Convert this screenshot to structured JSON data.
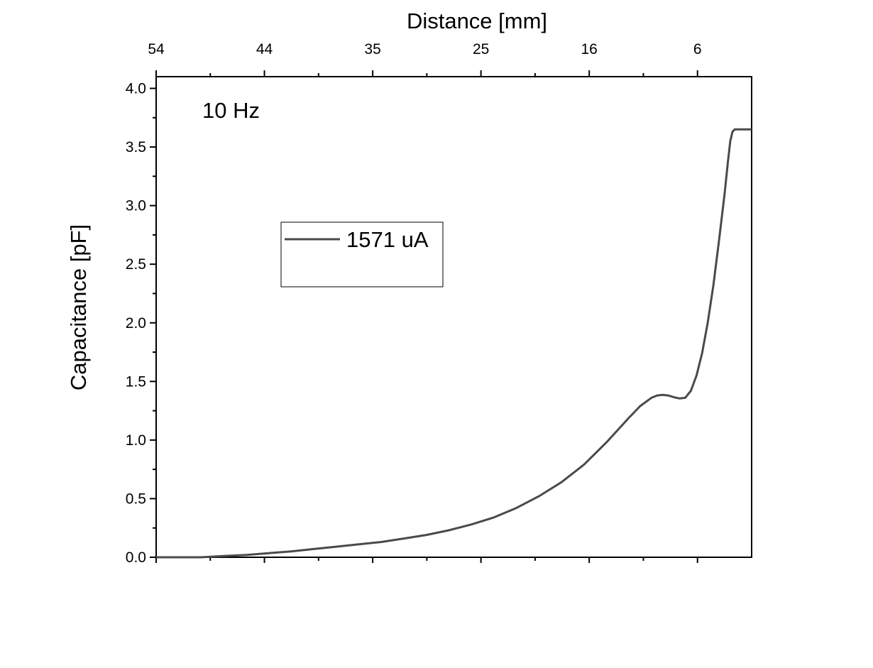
{
  "chart_data": {
    "type": "line",
    "xlabel": "Distance [mm]",
    "ylabel": "Capacitance [pF]",
    "annotation": "10 Hz",
    "x_ticks": [
      "54",
      "44",
      "35",
      "25",
      "16",
      "6"
    ],
    "xlim": [
      54,
      1.1
    ],
    "ylim": [
      0,
      4.1
    ],
    "y_ticks": [
      "0.0",
      "0.5",
      "1.0",
      "1.5",
      "2.0",
      "2.5",
      "3.0",
      "3.5",
      "4.0"
    ],
    "grid": false,
    "legend_position": "center-left",
    "series": [
      {
        "name": "1571 uA",
        "color": "#4a4a4a",
        "x": [
          54,
          52,
          50,
          48,
          46,
          44,
          42,
          40,
          38,
          36,
          34,
          32,
          30,
          28,
          26,
          24,
          22,
          20,
          18,
          16,
          14,
          12,
          11,
          10,
          9.5,
          9,
          8.5,
          8,
          7.5,
          7,
          6.5,
          6,
          5.5,
          5,
          4.5,
          4,
          3.5,
          3.2,
          3,
          2.8,
          2.6,
          2.4,
          2.3,
          2.2,
          1.1
        ],
        "y": [
          0.0,
          0.0,
          0.0,
          0.01,
          0.02,
          0.035,
          0.05,
          0.07,
          0.09,
          0.11,
          0.13,
          0.16,
          0.19,
          0.23,
          0.28,
          0.34,
          0.42,
          0.52,
          0.64,
          0.79,
          0.98,
          1.19,
          1.29,
          1.36,
          1.38,
          1.385,
          1.38,
          1.365,
          1.355,
          1.36,
          1.42,
          1.55,
          1.74,
          2.0,
          2.32,
          2.7,
          3.1,
          3.38,
          3.55,
          3.63,
          3.65,
          3.65,
          3.65,
          3.65,
          3.65
        ]
      }
    ]
  }
}
